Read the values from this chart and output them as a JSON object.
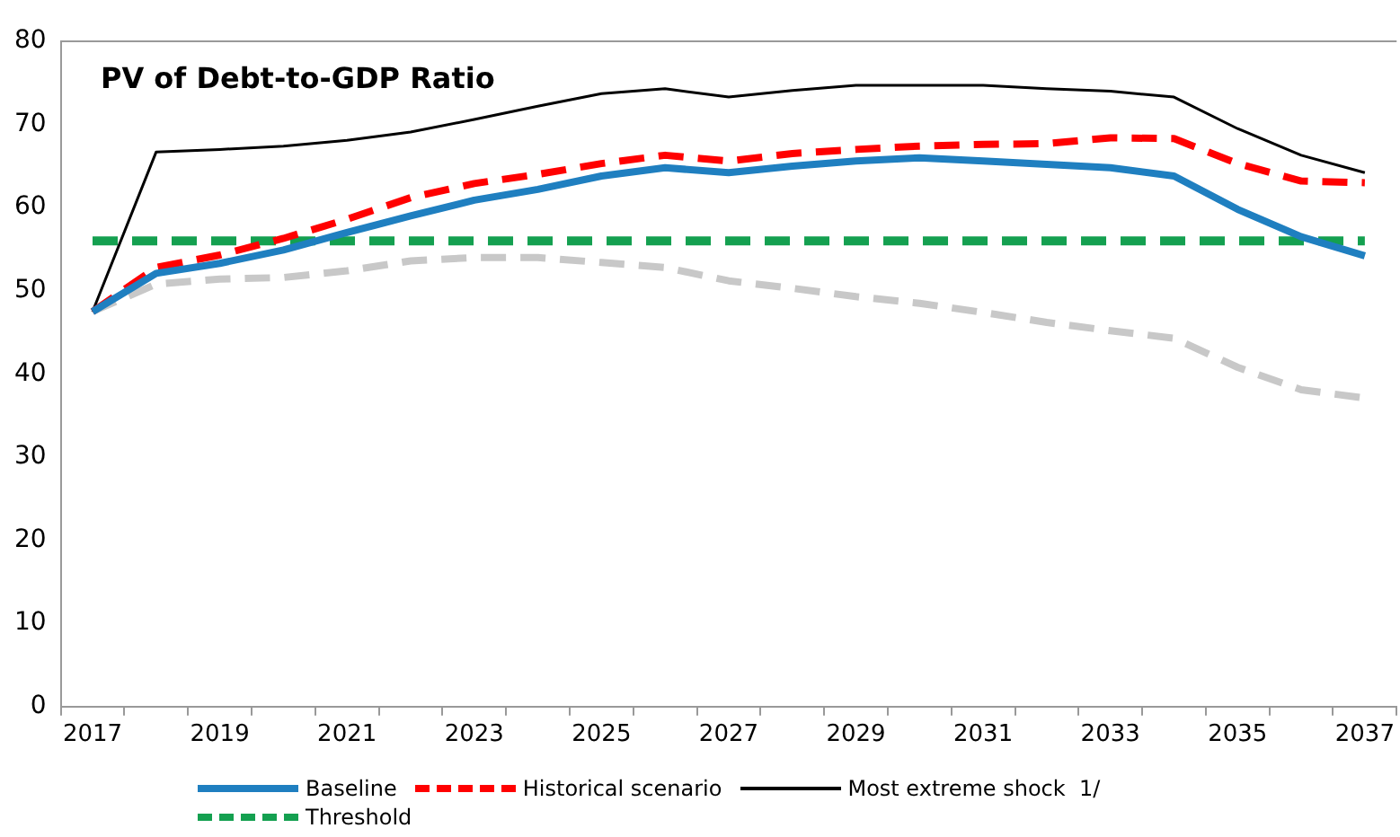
{
  "chart_data": {
    "type": "line",
    "title": "PV of Debt-to-GDP Ratio",
    "categories": [
      "2017",
      null,
      "2019",
      null,
      "2021",
      null,
      "2023",
      null,
      "2025",
      null,
      "2027",
      null,
      "2029",
      null,
      "2031",
      null,
      "2033",
      null,
      "2035",
      null,
      "2037"
    ],
    "series": [
      {
        "name": "Baseline",
        "color": "#1f7fc0",
        "line_style": "solid",
        "values": [
          47.5,
          52.1,
          53.3,
          54.9,
          57.0,
          59.0,
          60.9,
          62.2,
          63.8,
          64.8,
          64.2,
          65.0,
          65.6,
          66.0,
          65.6,
          65.2,
          64.8,
          63.8,
          59.8,
          56.5,
          54.2
        ]
      },
      {
        "name": "Historical scenario",
        "color": "#ff0000",
        "line_style": "dashed",
        "values": [
          47.5,
          52.8,
          54.3,
          56.3,
          58.6,
          61.2,
          62.9,
          64.0,
          65.3,
          66.3,
          65.6,
          66.5,
          67.0,
          67.4,
          67.6,
          67.7,
          68.4,
          68.3,
          65.3,
          63.2,
          63.0
        ]
      },
      {
        "name": "Most extreme shock  1/",
        "color": "#000000",
        "line_style": "solid",
        "values": [
          47.5,
          66.7,
          67.0,
          67.4,
          68.1,
          69.1,
          70.6,
          72.2,
          73.7,
          74.3,
          73.3,
          74.1,
          74.7,
          74.7,
          74.7,
          74.3,
          74.0,
          73.3,
          69.5,
          66.3,
          64.2
        ]
      },
      {
        "name": "Threshold",
        "color": "#14a050",
        "line_style": "dashed",
        "values": [
          56,
          56,
          56,
          56,
          56,
          56,
          56,
          56,
          56,
          56,
          56,
          56,
          56,
          56,
          56,
          56,
          56,
          56,
          56,
          56,
          56
        ]
      },
      {
        "color": "#c8c8c8",
        "line_style": "dashed",
        "values": [
          47.5,
          50.8,
          51.4,
          51.6,
          52.4,
          53.6,
          54.0,
          54.0,
          53.4,
          52.8,
          51.2,
          50.3,
          49.3,
          48.5,
          47.4,
          46.2,
          45.2,
          44.3,
          40.8,
          38.1,
          37.1
        ]
      }
    ],
    "ylim": [
      0,
      80
    ],
    "yticks": [
      0,
      10,
      20,
      30,
      40,
      50,
      60,
      70,
      80
    ],
    "grid": false,
    "legend": "bottom",
    "marker": "none"
  }
}
